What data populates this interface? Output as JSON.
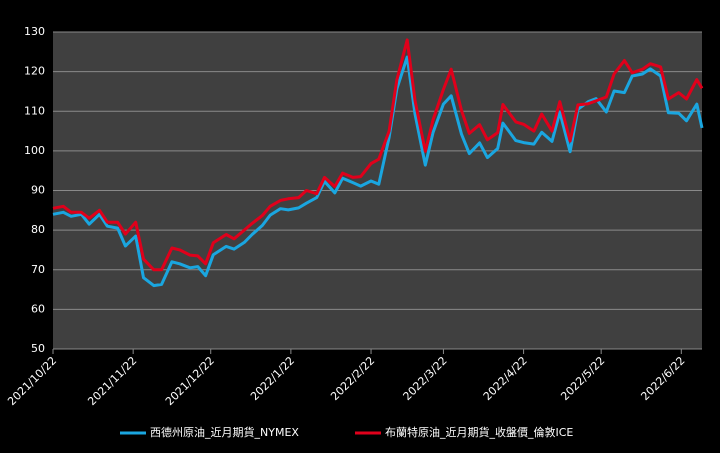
{
  "chart_data": {
    "type": "line",
    "x": [
      "2021/10/22",
      "2021/10/26",
      "2021/10/29",
      "2021/11/2",
      "2021/11/5",
      "2021/11/9",
      "2021/11/12",
      "2021/11/16",
      "2021/11/19",
      "2021/11/23",
      "2021/11/26",
      "2021/11/30",
      "2021/12/3",
      "2021/12/7",
      "2021/12/10",
      "2021/12/14",
      "2021/12/17",
      "2021/12/20",
      "2021/12/23",
      "2021/12/28",
      "2021/12/31",
      "2022/1/4",
      "2022/1/7",
      "2022/1/11",
      "2022/1/14",
      "2022/1/18",
      "2022/1/21",
      "2022/1/25",
      "2022/1/28",
      "2022/2/1",
      "2022/2/4",
      "2022/2/8",
      "2022/2/11",
      "2022/2/15",
      "2022/2/18",
      "2022/2/22",
      "2022/2/25",
      "2022/3/1",
      "2022/3/4",
      "2022/3/8",
      "2022/3/11",
      "2022/3/15",
      "2022/3/18",
      "2022/3/22",
      "2022/3/25",
      "2022/3/29",
      "2022/4/1",
      "2022/4/5",
      "2022/4/8",
      "2022/4/12",
      "2022/4/14",
      "2022/4/19",
      "2022/4/22",
      "2022/4/26",
      "2022/4/29",
      "2022/5/3",
      "2022/5/6",
      "2022/5/10",
      "2022/5/13",
      "2022/5/17",
      "2022/5/20",
      "2022/5/24",
      "2022/5/27",
      "2022/5/31",
      "2022/6/3",
      "2022/6/7",
      "2022/6/10",
      "2022/6/14",
      "2022/6/17",
      "2022/6/21",
      "2022/6/24",
      "2022/6/28",
      "2022/6/30"
    ],
    "series": [
      {
        "name": "西德州原油_近月期貨_NYMEX",
        "color": "#1aa6e0",
        "values": [
          84,
          84.5,
          83.5,
          84,
          81.5,
          84,
          81,
          80.5,
          76,
          78.5,
          68,
          66,
          66.3,
          72,
          71.5,
          70.5,
          70.8,
          68.5,
          73.8,
          75.9,
          75.2,
          76.9,
          78.9,
          81.2,
          83.8,
          85.4,
          85.1,
          85.6,
          86.8,
          88.2,
          92.3,
          89.4,
          93.1,
          92,
          91.1,
          92.4,
          91.6,
          103.4,
          115.7,
          123.7,
          109.3,
          96.4,
          104.7,
          111.8,
          113.9,
          104.2,
          99.3,
          102,
          98.3,
          100.6,
          107,
          102.6,
          102.1,
          101.7,
          104.7,
          102.4,
          109.8,
          99.8,
          110.5,
          112.4,
          113.2,
          109.8,
          115.1,
          114.7,
          118.9,
          119.4,
          120.7,
          118.9,
          109.6,
          109.5,
          107.6,
          111.8,
          105.8
        ]
      },
      {
        "name": "布蘭特原油_近月期貨_收盤價_倫敦ICE",
        "color": "#e0001b",
        "values": [
          85.5,
          86,
          84.5,
          84.5,
          83,
          85,
          82,
          82,
          79,
          82,
          72.7,
          70,
          70,
          75.5,
          75,
          73.7,
          73.5,
          71.5,
          76.8,
          78.9,
          77.8,
          80,
          81.7,
          83.7,
          86,
          87.5,
          87.9,
          88.2,
          90,
          89.2,
          93.3,
          91,
          94.4,
          93.3,
          93.5,
          96.8,
          97.9,
          105,
          118,
          128,
          112.7,
          99.9,
          107.9,
          115.5,
          120.6,
          110.2,
          104.4,
          106.6,
          102.8,
          104.6,
          111.7,
          107.3,
          106.7,
          105,
          109.3,
          105,
          112.4,
          102.5,
          111.6,
          111.9,
          112.6,
          113.6,
          119.4,
          122.8,
          119.7,
          120.6,
          122,
          121.2,
          113.1,
          114.7,
          113.1,
          118,
          115.8
        ]
      }
    ],
    "xlim": [
      "2021/10/22",
      "2022/6/30"
    ],
    "xticks": [
      "2021/10/22",
      "2021/11/22",
      "2021/12/22",
      "2022/1/22",
      "2022/2/22",
      "2022/3/22",
      "2022/4/22",
      "2022/5/22",
      "2022/6/22"
    ],
    "ylim": [
      50,
      130
    ],
    "yticks": [
      50,
      60,
      70,
      80,
      90,
      100,
      110,
      120,
      130
    ],
    "grid": true,
    "legend": "bottom"
  }
}
